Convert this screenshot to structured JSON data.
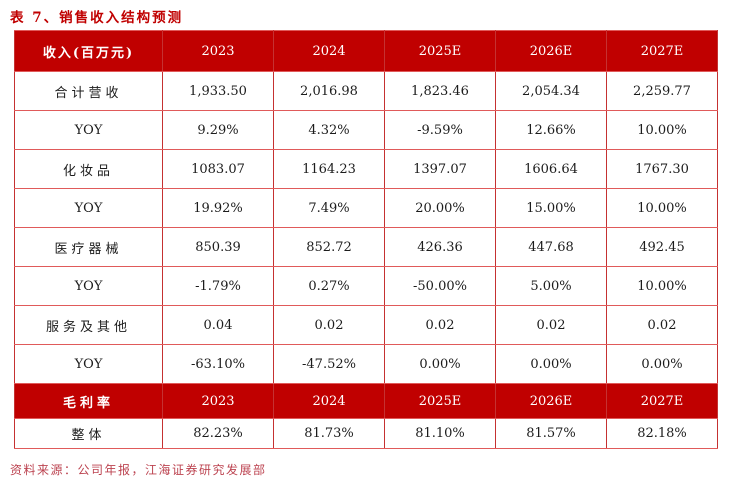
{
  "title": "表 7、销售收入结构预测",
  "table": {
    "header": {
      "label": "收入(百万元)",
      "years": [
        "2023",
        "2024",
        "2025E",
        "2026E",
        "2027E"
      ]
    },
    "rows": [
      {
        "label": "合计营收",
        "values": [
          "1,933.50",
          "2,016.98",
          "1,823.46",
          "2,054.34",
          "2,259.77"
        ]
      },
      {
        "label": "YOY",
        "values": [
          "9.29%",
          "4.32%",
          "-9.59%",
          "12.66%",
          "10.00%"
        ]
      },
      {
        "label": "化妆品",
        "values": [
          "1083.07",
          "1164.23",
          "1397.07",
          "1606.64",
          "1767.30"
        ]
      },
      {
        "label": "YOY",
        "values": [
          "19.92%",
          "7.49%",
          "20.00%",
          "15.00%",
          "10.00%"
        ]
      },
      {
        "label": "医疗器械",
        "values": [
          "850.39",
          "852.72",
          "426.36",
          "447.68",
          "492.45"
        ]
      },
      {
        "label": "YOY",
        "values": [
          "-1.79%",
          "0.27%",
          "-50.00%",
          "5.00%",
          "10.00%"
        ]
      },
      {
        "label": "服务及其他",
        "values": [
          "0.04",
          "0.02",
          "0.02",
          "0.02",
          "0.02"
        ]
      },
      {
        "label": "YOY",
        "values": [
          "-63.10%",
          "-47.52%",
          "0.00%",
          "0.00%",
          "0.00%"
        ]
      }
    ],
    "margin_header": {
      "label": "毛利率",
      "years": [
        "2023",
        "2024",
        "2025E",
        "2026E",
        "2027E"
      ]
    },
    "margin_rows": [
      {
        "label": "整体",
        "values": [
          "82.23%",
          "81.73%",
          "81.10%",
          "81.57%",
          "82.18%"
        ]
      }
    ]
  },
  "source": "资料来源：公司年报，江海证券研究发展部",
  "colors": {
    "header_bg": "#c00000",
    "border_vertical": "#c53131",
    "border_horizontal": "#e05a5a",
    "title_text": "#c00000",
    "source_text": "#bc4350",
    "cell_text": "#1c1c1c"
  }
}
